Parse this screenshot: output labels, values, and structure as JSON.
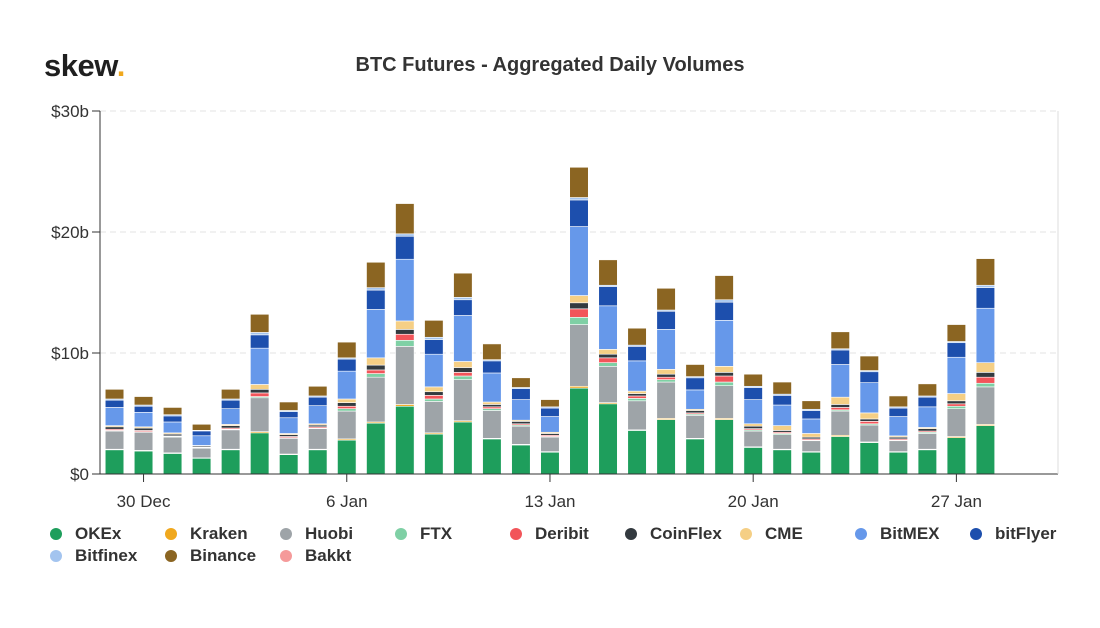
{
  "logo": {
    "text": "skew",
    "dot": "."
  },
  "chart_data": {
    "type": "bar",
    "stacked": true,
    "title": "BTC Futures - Aggregated Daily Volumes",
    "xlabel": "",
    "ylabel": "",
    "ylim": [
      0,
      30
    ],
    "y_ticks": [
      {
        "value": 0,
        "label": "$0"
      },
      {
        "value": 10,
        "label": "$10b"
      },
      {
        "value": 20,
        "label": "$20b"
      },
      {
        "value": 30,
        "label": "$30b"
      }
    ],
    "x_tick_labels": [
      {
        "index": 1,
        "label": "30 Dec"
      },
      {
        "index": 8,
        "label": "6 Jan"
      },
      {
        "index": 15,
        "label": "13 Jan"
      },
      {
        "index": 22,
        "label": "20 Jan"
      },
      {
        "index": 29,
        "label": "27 Jan"
      }
    ],
    "categories": [
      "29 Dec",
      "30 Dec",
      "31 Dec",
      "1 Jan",
      "2 Jan",
      "3 Jan",
      "4 Jan",
      "5 Jan",
      "6 Jan",
      "7 Jan",
      "8 Jan",
      "9 Jan",
      "10 Jan",
      "11 Jan",
      "12 Jan",
      "13 Jan",
      "14 Jan",
      "15 Jan",
      "16 Jan",
      "17 Jan",
      "18 Jan",
      "19 Jan",
      "20 Jan",
      "21 Jan",
      "22 Jan",
      "23 Jan",
      "24 Jan",
      "25 Jan",
      "26 Jan",
      "27 Jan",
      "28 Jan",
      "29 Jan",
      "30 Jan"
    ],
    "legend_position": "bottom",
    "series": [
      {
        "name": "OKEx",
        "color": "#1e9e5c",
        "values": [
          2.0,
          1.9,
          1.7,
          1.3,
          2.0,
          3.4,
          1.6,
          2.0,
          2.8,
          4.2,
          5.6,
          3.3,
          4.3,
          2.9,
          2.4,
          1.8,
          7.1,
          5.8,
          3.6,
          4.5,
          2.9,
          4.5,
          2.2,
          2.0,
          1.8,
          3.1,
          2.6,
          1.8,
          2.0,
          3.0,
          4.0,
          0,
          0
        ]
      },
      {
        "name": "Kraken",
        "color": "#f0a81e",
        "values": [
          0.05,
          0.05,
          0.05,
          0.03,
          0.05,
          0.1,
          0.05,
          0.05,
          0.1,
          0.1,
          0.15,
          0.1,
          0.1,
          0.05,
          0.05,
          0.05,
          0.15,
          0.1,
          0.05,
          0.1,
          0.05,
          0.1,
          0.05,
          0.05,
          0.05,
          0.1,
          0.05,
          0.05,
          0.05,
          0.1,
          0.1,
          0,
          0
        ]
      },
      {
        "name": "Huobi",
        "color": "#9ea4a8",
        "values": [
          1.5,
          1.5,
          1.3,
          0.8,
          1.6,
          2.8,
          1.3,
          1.7,
          2.3,
          3.7,
          4.8,
          2.6,
          3.4,
          2.3,
          1.5,
          1.2,
          5.1,
          3.0,
          2.4,
          3.0,
          1.9,
          2.7,
          1.3,
          1.2,
          0.9,
          2.0,
          1.4,
          0.9,
          1.3,
          2.3,
          3.1,
          0,
          0
        ]
      },
      {
        "name": "FTX",
        "color": "#7fd0a5",
        "values": [
          0.05,
          0.05,
          0.05,
          0.03,
          0.05,
          0.1,
          0.05,
          0.05,
          0.2,
          0.3,
          0.5,
          0.2,
          0.3,
          0.15,
          0.1,
          0.05,
          0.6,
          0.3,
          0.2,
          0.2,
          0.1,
          0.3,
          0.1,
          0.1,
          0.05,
          0.1,
          0.1,
          0.05,
          0.1,
          0.2,
          0.3,
          0,
          0
        ]
      },
      {
        "name": "Deribit",
        "color": "#f2555a",
        "values": [
          0.1,
          0.1,
          0.05,
          0.05,
          0.1,
          0.3,
          0.1,
          0.1,
          0.2,
          0.3,
          0.5,
          0.3,
          0.3,
          0.15,
          0.1,
          0.1,
          0.7,
          0.4,
          0.2,
          0.2,
          0.1,
          0.5,
          0.1,
          0.1,
          0.1,
          0.2,
          0.2,
          0.1,
          0.1,
          0.2,
          0.5,
          0,
          0
        ]
      },
      {
        "name": "CoinFlex",
        "color": "#333a3f",
        "values": [
          0.2,
          0.2,
          0.15,
          0.1,
          0.2,
          0.3,
          0.15,
          0.15,
          0.3,
          0.4,
          0.4,
          0.3,
          0.4,
          0.2,
          0.2,
          0.15,
          0.5,
          0.3,
          0.2,
          0.25,
          0.2,
          0.3,
          0.2,
          0.15,
          0.15,
          0.25,
          0.2,
          0.15,
          0.2,
          0.25,
          0.4,
          0,
          0
        ]
      },
      {
        "name": "CME",
        "color": "#f5cf85",
        "values": [
          0.1,
          0.1,
          0.1,
          0.05,
          0.1,
          0.4,
          0.1,
          0.1,
          0.3,
          0.6,
          0.7,
          0.4,
          0.5,
          0.2,
          0.1,
          0.1,
          0.6,
          0.4,
          0.2,
          0.4,
          0.1,
          0.5,
          0.2,
          0.4,
          0.3,
          0.6,
          0.5,
          0.1,
          0.1,
          0.6,
          0.8,
          0,
          0
        ]
      },
      {
        "name": "BitMEX",
        "color": "#6698ea",
        "values": [
          1.5,
          1.2,
          0.9,
          0.8,
          1.3,
          3.0,
          1.3,
          1.5,
          2.3,
          4.0,
          5.1,
          2.7,
          3.8,
          2.4,
          1.7,
          1.3,
          5.7,
          3.6,
          2.5,
          3.3,
          1.6,
          3.8,
          2.0,
          1.7,
          1.2,
          2.7,
          2.5,
          1.6,
          1.7,
          3.0,
          4.5,
          0,
          0
        ]
      },
      {
        "name": "bitFlyer",
        "color": "#1d4fad",
        "values": [
          0.6,
          0.5,
          0.5,
          0.4,
          0.7,
          1.1,
          0.5,
          0.7,
          1.0,
          1.6,
          1.9,
          1.2,
          1.3,
          1.0,
          0.9,
          0.7,
          2.2,
          1.6,
          1.2,
          1.5,
          1.0,
          1.5,
          1.0,
          0.8,
          0.7,
          1.2,
          0.9,
          0.7,
          0.8,
          1.2,
          1.7,
          0,
          0
        ]
      },
      {
        "name": "Bitfinex",
        "color": "#a3c4ef",
        "values": [
          0.1,
          0.1,
          0.1,
          0.05,
          0.1,
          0.2,
          0.1,
          0.1,
          0.1,
          0.2,
          0.2,
          0.2,
          0.2,
          0.1,
          0.1,
          0.1,
          0.2,
          0.1,
          0.1,
          0.1,
          0.1,
          0.2,
          0.1,
          0.1,
          0.1,
          0.1,
          0.1,
          0.1,
          0.1,
          0.1,
          0.2,
          0,
          0
        ]
      },
      {
        "name": "Binance",
        "color": "#8b6522",
        "values": [
          0.8,
          0.7,
          0.6,
          0.5,
          0.8,
          1.5,
          0.7,
          0.8,
          1.3,
          2.1,
          2.5,
          1.4,
          2.0,
          1.3,
          0.8,
          0.6,
          2.5,
          2.1,
          1.4,
          1.8,
          1.0,
          2.0,
          1.0,
          1.0,
          0.7,
          1.4,
          1.2,
          0.9,
          1.0,
          1.4,
          2.2,
          0,
          0
        ]
      },
      {
        "name": "Bakkt",
        "color": "#f59a9a",
        "values": [
          0,
          0,
          0,
          0,
          0,
          0,
          0,
          0,
          0,
          0,
          0,
          0,
          0,
          0,
          0,
          0,
          0,
          0,
          0,
          0,
          0,
          0,
          0,
          0,
          0,
          0,
          0,
          0,
          0,
          0,
          0,
          0,
          0
        ]
      }
    ]
  }
}
